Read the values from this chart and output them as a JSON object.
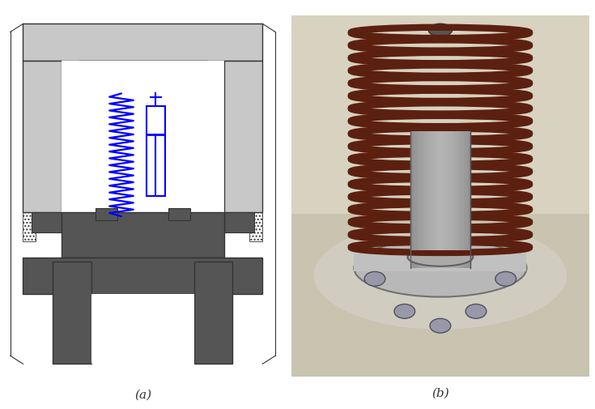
{
  "fig_width": 7.35,
  "fig_height": 5.06,
  "dpi": 100,
  "background_color": "#ffffff",
  "label_a": "(a)",
  "label_b": "(b)",
  "label_fontsize": 11,
  "label_color": "#333333",
  "spring_color": "#0000ff",
  "structure_dark": "#555555",
  "structure_light": "#c8c8c8",
  "structure_border": "#333333",
  "structure_mid": "#909090",
  "white": "#ffffff",
  "spring_brown": "#5c2010",
  "photo_bg_top": "#d8d0b8",
  "photo_bg_bot": "#b8b4a0",
  "cyl_color": "#909090",
  "flange_color": "#aaaaaa",
  "bolt_color": "#888898"
}
